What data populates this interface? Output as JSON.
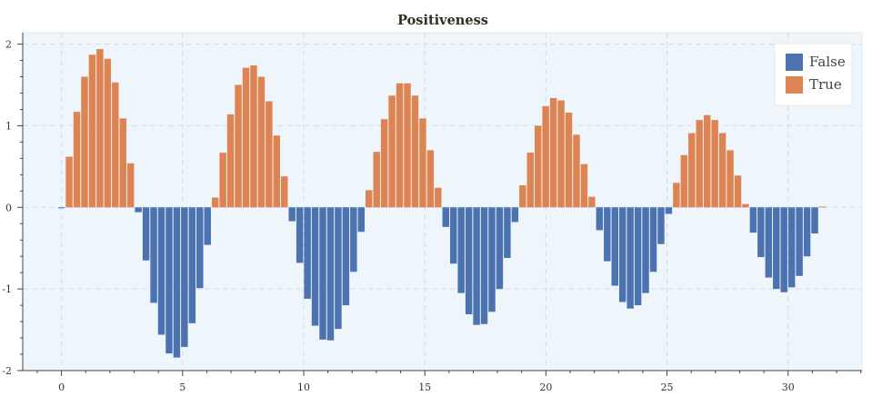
{
  "chart_data": {
    "type": "bar",
    "title": "Positiveness",
    "xlabel": "",
    "ylabel": "",
    "xlim": [
      -1.6,
      33.05
    ],
    "ylim": [
      -2.0,
      2.14
    ],
    "x_ticks": [
      "0",
      "5",
      "10",
      "15",
      "20",
      "25",
      "30"
    ],
    "y_ticks": [
      "-2",
      "-1",
      "0",
      "1",
      "2"
    ],
    "grid": true,
    "legend_position": "top-right",
    "bar_width": 0.28,
    "series": [
      {
        "name": "False",
        "color": "#4c72b0"
      },
      {
        "name": "True",
        "color": "#dd8452"
      }
    ],
    "x": [
      0.0,
      0.317,
      0.635,
      0.952,
      1.269,
      1.587,
      1.904,
      2.221,
      2.539,
      2.856,
      3.173,
      3.491,
      3.808,
      4.125,
      4.443,
      4.76,
      5.077,
      5.395,
      5.712,
      6.029,
      6.347,
      6.664,
      6.981,
      7.299,
      7.616,
      7.933,
      8.251,
      8.568,
      8.885,
      9.203,
      9.52,
      9.837,
      10.155,
      10.472,
      10.789,
      11.107,
      11.424,
      11.741,
      12.059,
      12.376,
      12.693,
      13.011,
      13.328,
      13.645,
      13.963,
      14.28,
      14.597,
      14.915,
      15.232,
      15.549,
      15.867,
      16.184,
      16.501,
      16.819,
      17.136,
      17.453,
      17.771,
      18.088,
      18.405,
      18.723,
      19.04,
      19.357,
      19.675,
      19.992,
      20.309,
      20.627,
      20.944,
      21.261,
      21.579,
      21.896,
      22.213,
      22.531,
      22.848,
      23.165,
      23.483,
      23.8,
      24.117,
      24.435,
      24.752,
      25.069,
      25.387,
      25.704,
      26.021,
      26.339,
      26.656,
      26.973,
      27.291,
      27.608,
      27.925,
      28.243,
      28.56,
      28.877,
      29.195,
      29.512,
      29.829,
      30.147,
      30.464,
      30.781,
      31.099,
      31.416
    ],
    "values": [
      0.0,
      0.62,
      1.17,
      1.6,
      1.87,
      1.94,
      1.82,
      1.53,
      1.09,
      0.54,
      -0.06,
      -0.65,
      -1.17,
      -1.56,
      -1.79,
      -1.84,
      -1.71,
      -1.42,
      -0.99,
      -0.46,
      0.12,
      0.67,
      1.14,
      1.5,
      1.71,
      1.74,
      1.6,
      1.3,
      0.88,
      0.38,
      -0.17,
      -0.68,
      -1.12,
      -1.45,
      -1.62,
      -1.63,
      -1.49,
      -1.2,
      -0.79,
      -0.3,
      0.21,
      0.68,
      1.08,
      1.37,
      1.52,
      1.52,
      1.37,
      1.09,
      0.7,
      0.24,
      -0.24,
      -0.69,
      -1.05,
      -1.31,
      -1.44,
      -1.43,
      -1.28,
      -1.0,
      -0.62,
      -0.18,
      0.27,
      0.67,
      1.0,
      1.24,
      1.34,
      1.31,
      1.16,
      0.89,
      0.53,
      0.13,
      -0.28,
      -0.66,
      -0.96,
      -1.16,
      -1.24,
      -1.2,
      -1.05,
      -0.79,
      -0.45,
      -0.08,
      0.3,
      0.64,
      0.91,
      1.07,
      1.13,
      1.07,
      0.91,
      0.7,
      0.39,
      0.04,
      -0.31,
      -0.61,
      -0.86,
      -1.0,
      -1.04,
      -0.98,
      -0.84,
      -0.6,
      -0.32,
      0.01
    ]
  }
}
